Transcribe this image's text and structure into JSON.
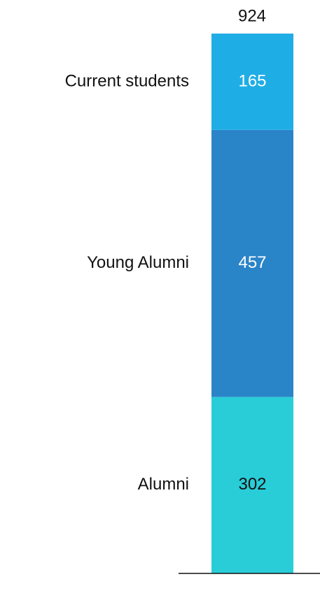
{
  "chart_data": {
    "type": "bar",
    "stacked": true,
    "series": [
      {
        "name": "Alumni",
        "color": "#29cdd8",
        "label_color": "#111111",
        "values": [
          302
        ]
      },
      {
        "name": "Young Alumni",
        "color": "#2a84c8",
        "label_color": "#ffffff",
        "values": [
          457
        ]
      },
      {
        "name": "Current students",
        "color": "#1fade5",
        "label_color": "#ffffff",
        "values": [
          165
        ]
      }
    ],
    "total": 924,
    "ylim": [
      0,
      924
    ]
  }
}
